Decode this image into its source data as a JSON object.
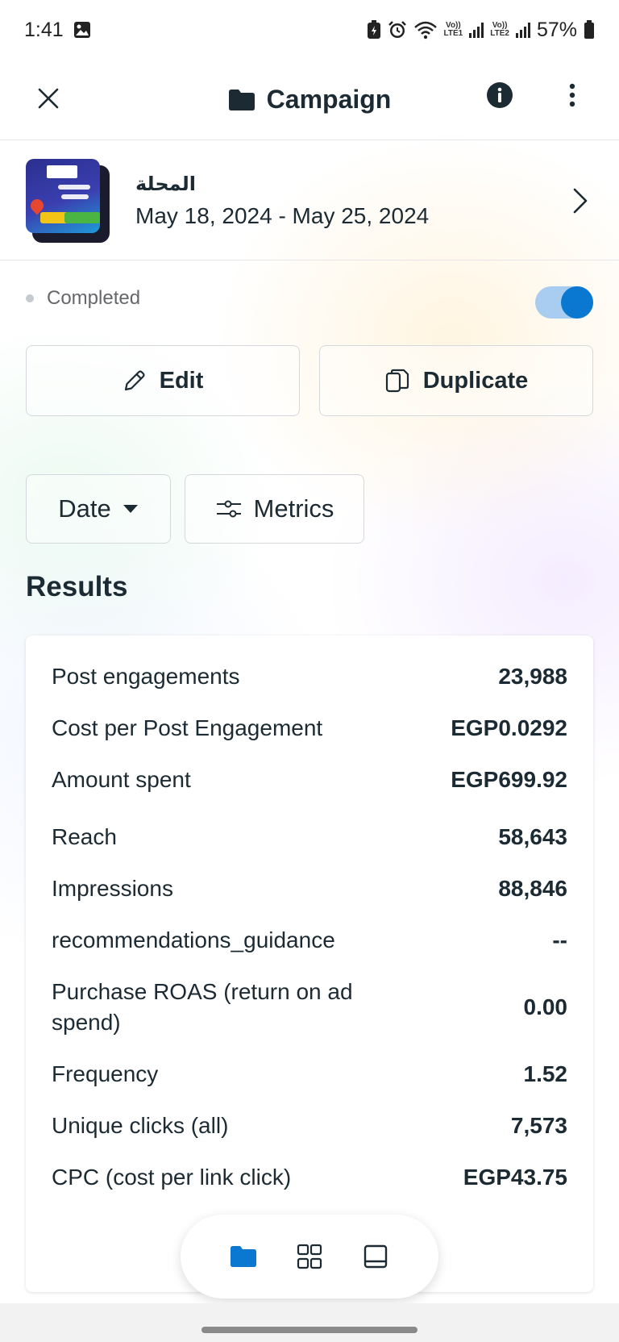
{
  "status_bar": {
    "time": "1:41",
    "net1": "Vo))\nLTE1",
    "net2": "Vo))\nLTE2",
    "battery": "57%"
  },
  "app_bar": {
    "title": "Campaign"
  },
  "campaign": {
    "name": "المحلة",
    "dates": "May 18, 2024 - May 25, 2024"
  },
  "status": {
    "label": "Completed",
    "toggle_on": true
  },
  "actions": {
    "edit_label": "Edit",
    "duplicate_label": "Duplicate"
  },
  "filters": {
    "date_label": "Date",
    "metrics_label": "Metrics"
  },
  "results": {
    "heading": "Results",
    "metrics": [
      {
        "label": "Post engagements",
        "value": "23,988"
      },
      {
        "label": "Cost per Post Engagement",
        "value": "EGP0.0292"
      },
      {
        "label": "Amount spent",
        "value": "EGP699.92"
      },
      {
        "label": "Reach",
        "value": "58,643"
      },
      {
        "label": "Impressions",
        "value": "88,846"
      },
      {
        "label": "recommendations_guidance",
        "value": "--"
      },
      {
        "label": "Purchase ROAS (return on ad spend)",
        "value": "0.00"
      },
      {
        "label": "Frequency",
        "value": "1.52"
      },
      {
        "label": "Unique clicks (all)",
        "value": "7,573"
      },
      {
        "label": "CPC (cost per link click)",
        "value": "EGP43.75"
      }
    ]
  },
  "colors": {
    "accent": "#0a78d0",
    "toggle_track": "#a9cdf0",
    "text": "#1c2b33",
    "muted": "#65676b"
  },
  "icons": {
    "close": "close-icon",
    "folder": "folder-icon",
    "info": "info-icon",
    "more": "more-vertical-icon",
    "chevron": "chevron-right-icon",
    "edit": "pencil-icon",
    "duplicate": "duplicate-icon",
    "dropdown": "caret-down-icon",
    "metrics": "sliders-icon",
    "nav_campaigns": "folder-icon",
    "nav_grid": "grid-icon",
    "nav_tablet": "tablet-icon"
  }
}
